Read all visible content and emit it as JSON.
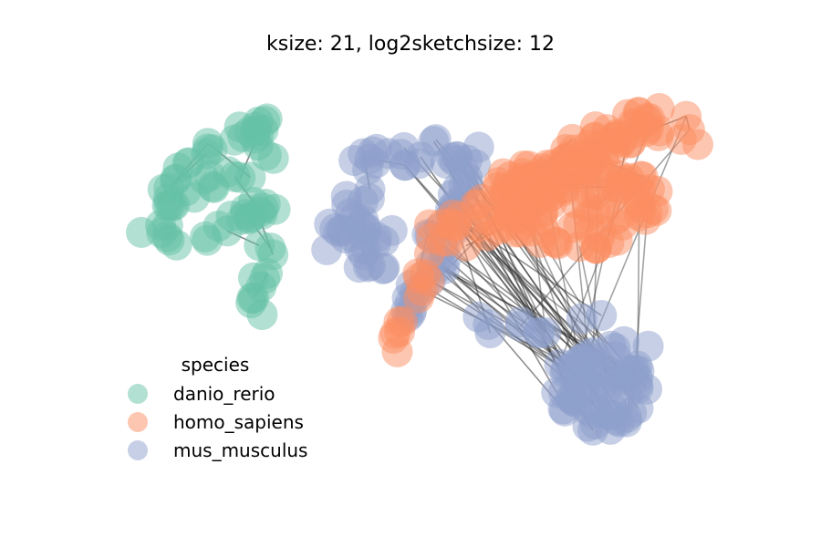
{
  "chart_data": {
    "type": "scatter",
    "subtype": "network-graph",
    "title": "ksize: 21, log2sketchsize: 12",
    "axes_visible": false,
    "grid": false,
    "legend": {
      "title": "species",
      "placement": "lower-left",
      "entries": [
        {
          "label": "danio_rerio",
          "color": "#66c2a5"
        },
        {
          "label": "homo_sapiens",
          "color": "#fc8d62"
        },
        {
          "label": "mus_musculus",
          "color": "#8da0cb"
        }
      ]
    },
    "node_alpha": 0.5,
    "edge_color": "#333333",
    "clusters": [
      {
        "species": "danio_rerio",
        "approx_nodes": 80
      },
      {
        "species": "mus_musculus",
        "approx_nodes": 170
      },
      {
        "species": "homo_sapiens",
        "approx_nodes": 220
      }
    ]
  }
}
